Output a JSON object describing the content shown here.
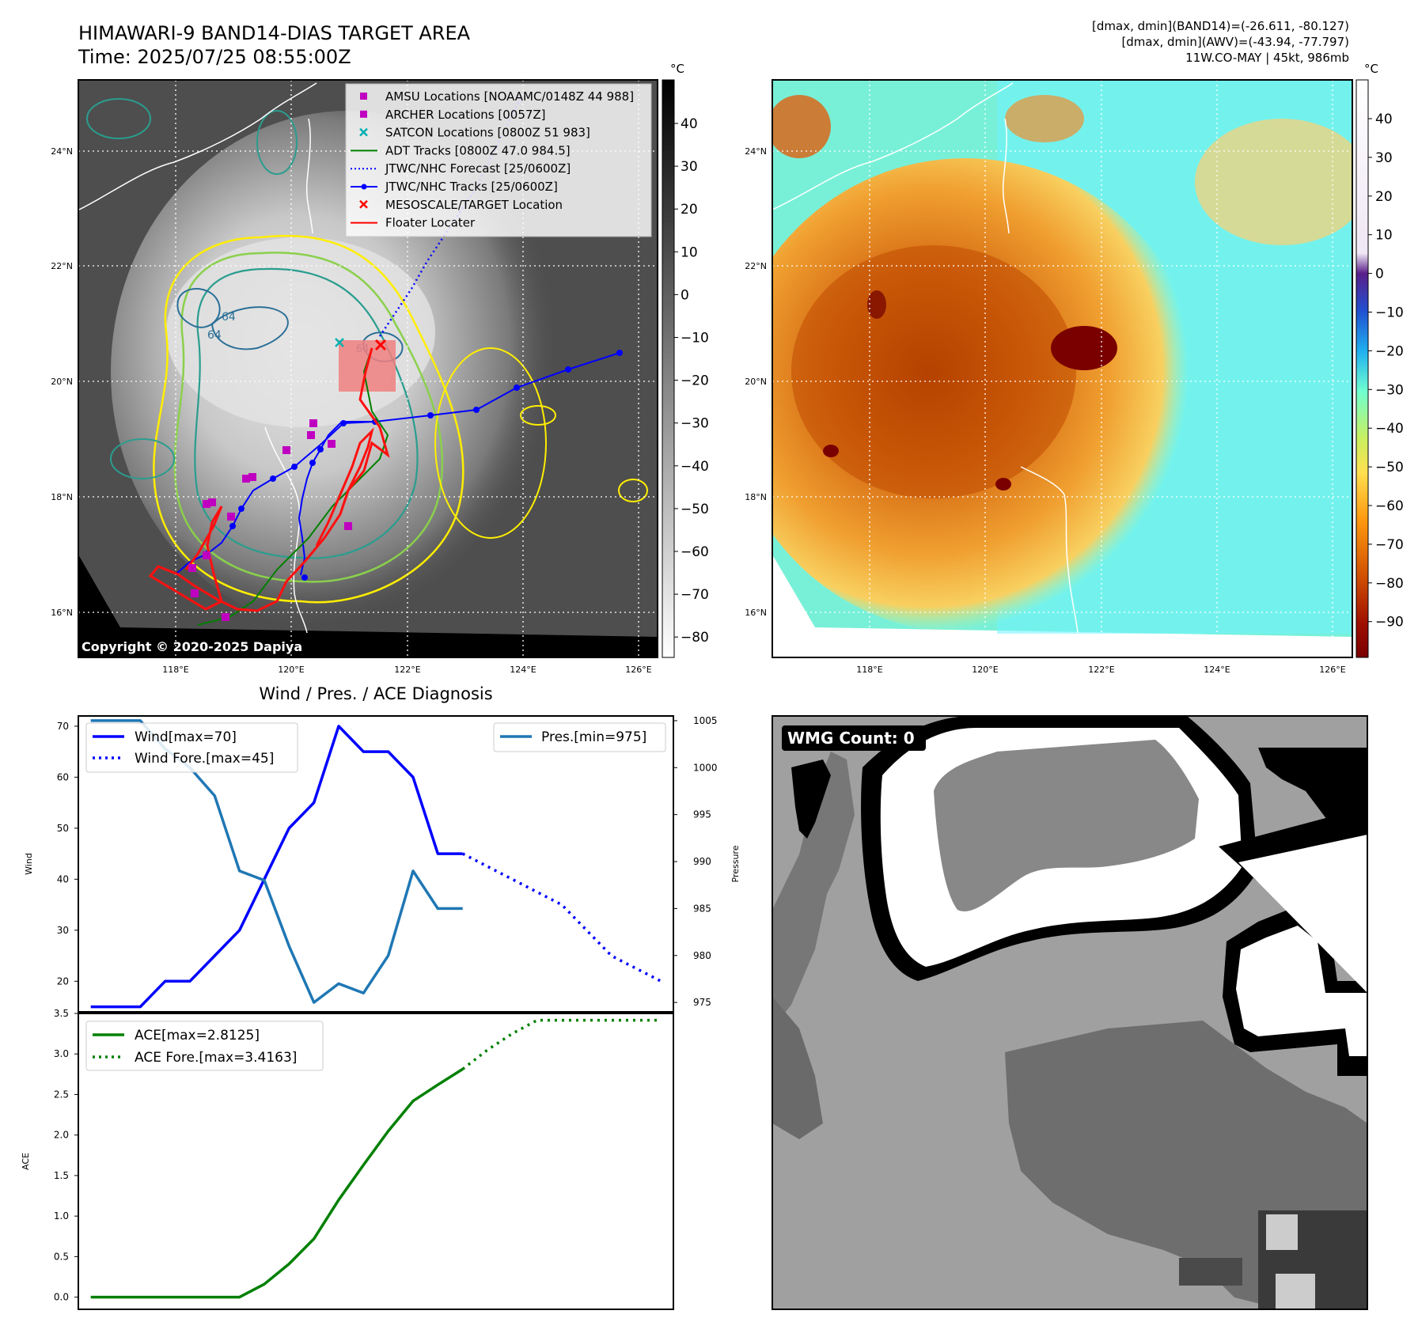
{
  "header": {
    "title_line1": "HIMAWARI-9 BAND14-DIAS TARGET AREA",
    "title_line2": "Time: 2025/07/25 08:55:00Z",
    "right_line1": "[dmax, dmin](BAND14)=(-26.611, -80.127)",
    "right_line2": "[dmax, dmin](AWV)=(-43.94, -77.797)",
    "right_line3": "11W.CO-MAY | 45kt, 986mb"
  },
  "map_left": {
    "copyright": "Copyright © 2020-2025 Dapiya",
    "lat_labels": [
      "24°N",
      "22°N",
      "20°N",
      "18°N",
      "16°N"
    ],
    "lon_labels": [
      "118°E",
      "120°E",
      "122°E",
      "124°E",
      "126°E"
    ],
    "contour_labels": [
      "64",
      "64",
      "64"
    ],
    "colorbar_unit": "°C",
    "colorbar_ticks": [
      "40",
      "30",
      "20",
      "10",
      "0",
      "−10",
      "−20",
      "−30",
      "−40",
      "−50",
      "−60",
      "−70",
      "−80"
    ],
    "legend": [
      {
        "label": "AMSU Locations [NOAAMC/0148Z 44 988]",
        "color": "#c000c0",
        "marker": "square"
      },
      {
        "label": "ARCHER Locations [0057Z]",
        "color": "#c000c0",
        "marker": "square"
      },
      {
        "label": "SATCON Locations [0800Z 51 983]",
        "color": "#00b0b0",
        "marker": "x"
      },
      {
        "label": "ADT Tracks [0800Z 47.0 984.5]",
        "color": "#008000",
        "marker": "line"
      },
      {
        "label": "JTWC/NHC Forecast [25/0600Z]",
        "color": "#0000ff",
        "marker": "dotted"
      },
      {
        "label": "JTWC/NHC Tracks [25/0600Z]",
        "color": "#0000ff",
        "marker": "line-dot"
      },
      {
        "label": "MESOSCALE/TARGET Location",
        "color": "#ff0000",
        "marker": "x"
      },
      {
        "label": "Floater Locater",
        "color": "#ff0000",
        "marker": "line"
      }
    ]
  },
  "map_right": {
    "lat_labels": [
      "24°N",
      "22°N",
      "20°N",
      "18°N",
      "16°N"
    ],
    "lon_labels": [
      "118°E",
      "120°E",
      "122°E",
      "124°E",
      "126°E"
    ],
    "colorbar_unit": "°C",
    "colorbar_ticks": [
      "40",
      "30",
      "20",
      "10",
      "0",
      "−10",
      "−20",
      "−30",
      "−40",
      "−50",
      "−60",
      "−70",
      "−80",
      "−90"
    ]
  },
  "wmg": {
    "label": "WMG Count: 0"
  },
  "chart_data": [
    {
      "type": "line",
      "title": "Wind / Pres. / ACE Diagnosis",
      "ylabel": "Wind",
      "y2label": "Pressure",
      "ylim": [
        14,
        72
      ],
      "y2lim": [
        974,
        1005.5
      ],
      "xlim": [
        -0.5,
        23.5
      ],
      "yticks": [
        20,
        30,
        40,
        50,
        60,
        70
      ],
      "y2ticks": [
        975,
        980,
        985,
        990,
        995,
        1000,
        1005
      ],
      "series": [
        {
          "name": "Wind[max=70]",
          "color": "#0000ff",
          "style": "solid",
          "x": [
            0,
            1,
            2,
            3,
            4,
            5,
            6,
            7,
            8,
            9,
            10,
            11,
            12,
            13,
            14,
            15
          ],
          "values": [
            15,
            15,
            15,
            20,
            20,
            25,
            30,
            40,
            50,
            55,
            70,
            65,
            65,
            60,
            45,
            45
          ]
        },
        {
          "name": "Wind Fore.[max=45]",
          "color": "#0000ff",
          "style": "dotted",
          "x": [
            15,
            16,
            17,
            18,
            19,
            20,
            21,
            22,
            23
          ],
          "values": [
            45,
            42.5,
            40,
            37.5,
            35,
            30,
            25,
            22.5,
            20
          ]
        },
        {
          "name": "Pres.[min=975]",
          "color": "#1f77b4",
          "style": "solid",
          "axis": "right",
          "x": [
            0,
            1,
            2,
            3,
            4,
            5,
            6,
            7,
            8,
            9,
            10,
            11,
            12,
            13,
            14,
            15
          ],
          "values": [
            1005,
            1005,
            1005,
            1002,
            1000,
            997,
            989,
            988,
            981,
            975,
            977,
            976,
            980,
            989,
            985,
            985
          ]
        }
      ]
    },
    {
      "type": "line",
      "ylabel": "ACE",
      "ylim": [
        -0.15,
        3.5
      ],
      "xlim": [
        -0.5,
        23.5
      ],
      "yticks": [
        0.0,
        0.5,
        1.0,
        1.5,
        2.0,
        2.5,
        3.0,
        3.5
      ],
      "series": [
        {
          "name": "ACE[max=2.8125]",
          "color": "#008000",
          "style": "solid",
          "x": [
            0,
            1,
            2,
            3,
            4,
            5,
            6,
            7,
            8,
            9,
            10,
            11,
            12,
            13,
            14,
            15
          ],
          "values": [
            0,
            0,
            0,
            0,
            0,
            0,
            0,
            0.16,
            0.41,
            0.72,
            1.2,
            1.63,
            2.05,
            2.42,
            2.62,
            2.8125
          ]
        },
        {
          "name": "ACE Fore.[max=3.4163]",
          "color": "#008000",
          "style": "dotted",
          "x": [
            15,
            16,
            17,
            18,
            19,
            20,
            21,
            22,
            23
          ],
          "values": [
            2.8125,
            3.05,
            3.25,
            3.4163,
            3.4163,
            3.4163,
            3.4163,
            3.4163,
            3.4163
          ]
        }
      ]
    }
  ]
}
